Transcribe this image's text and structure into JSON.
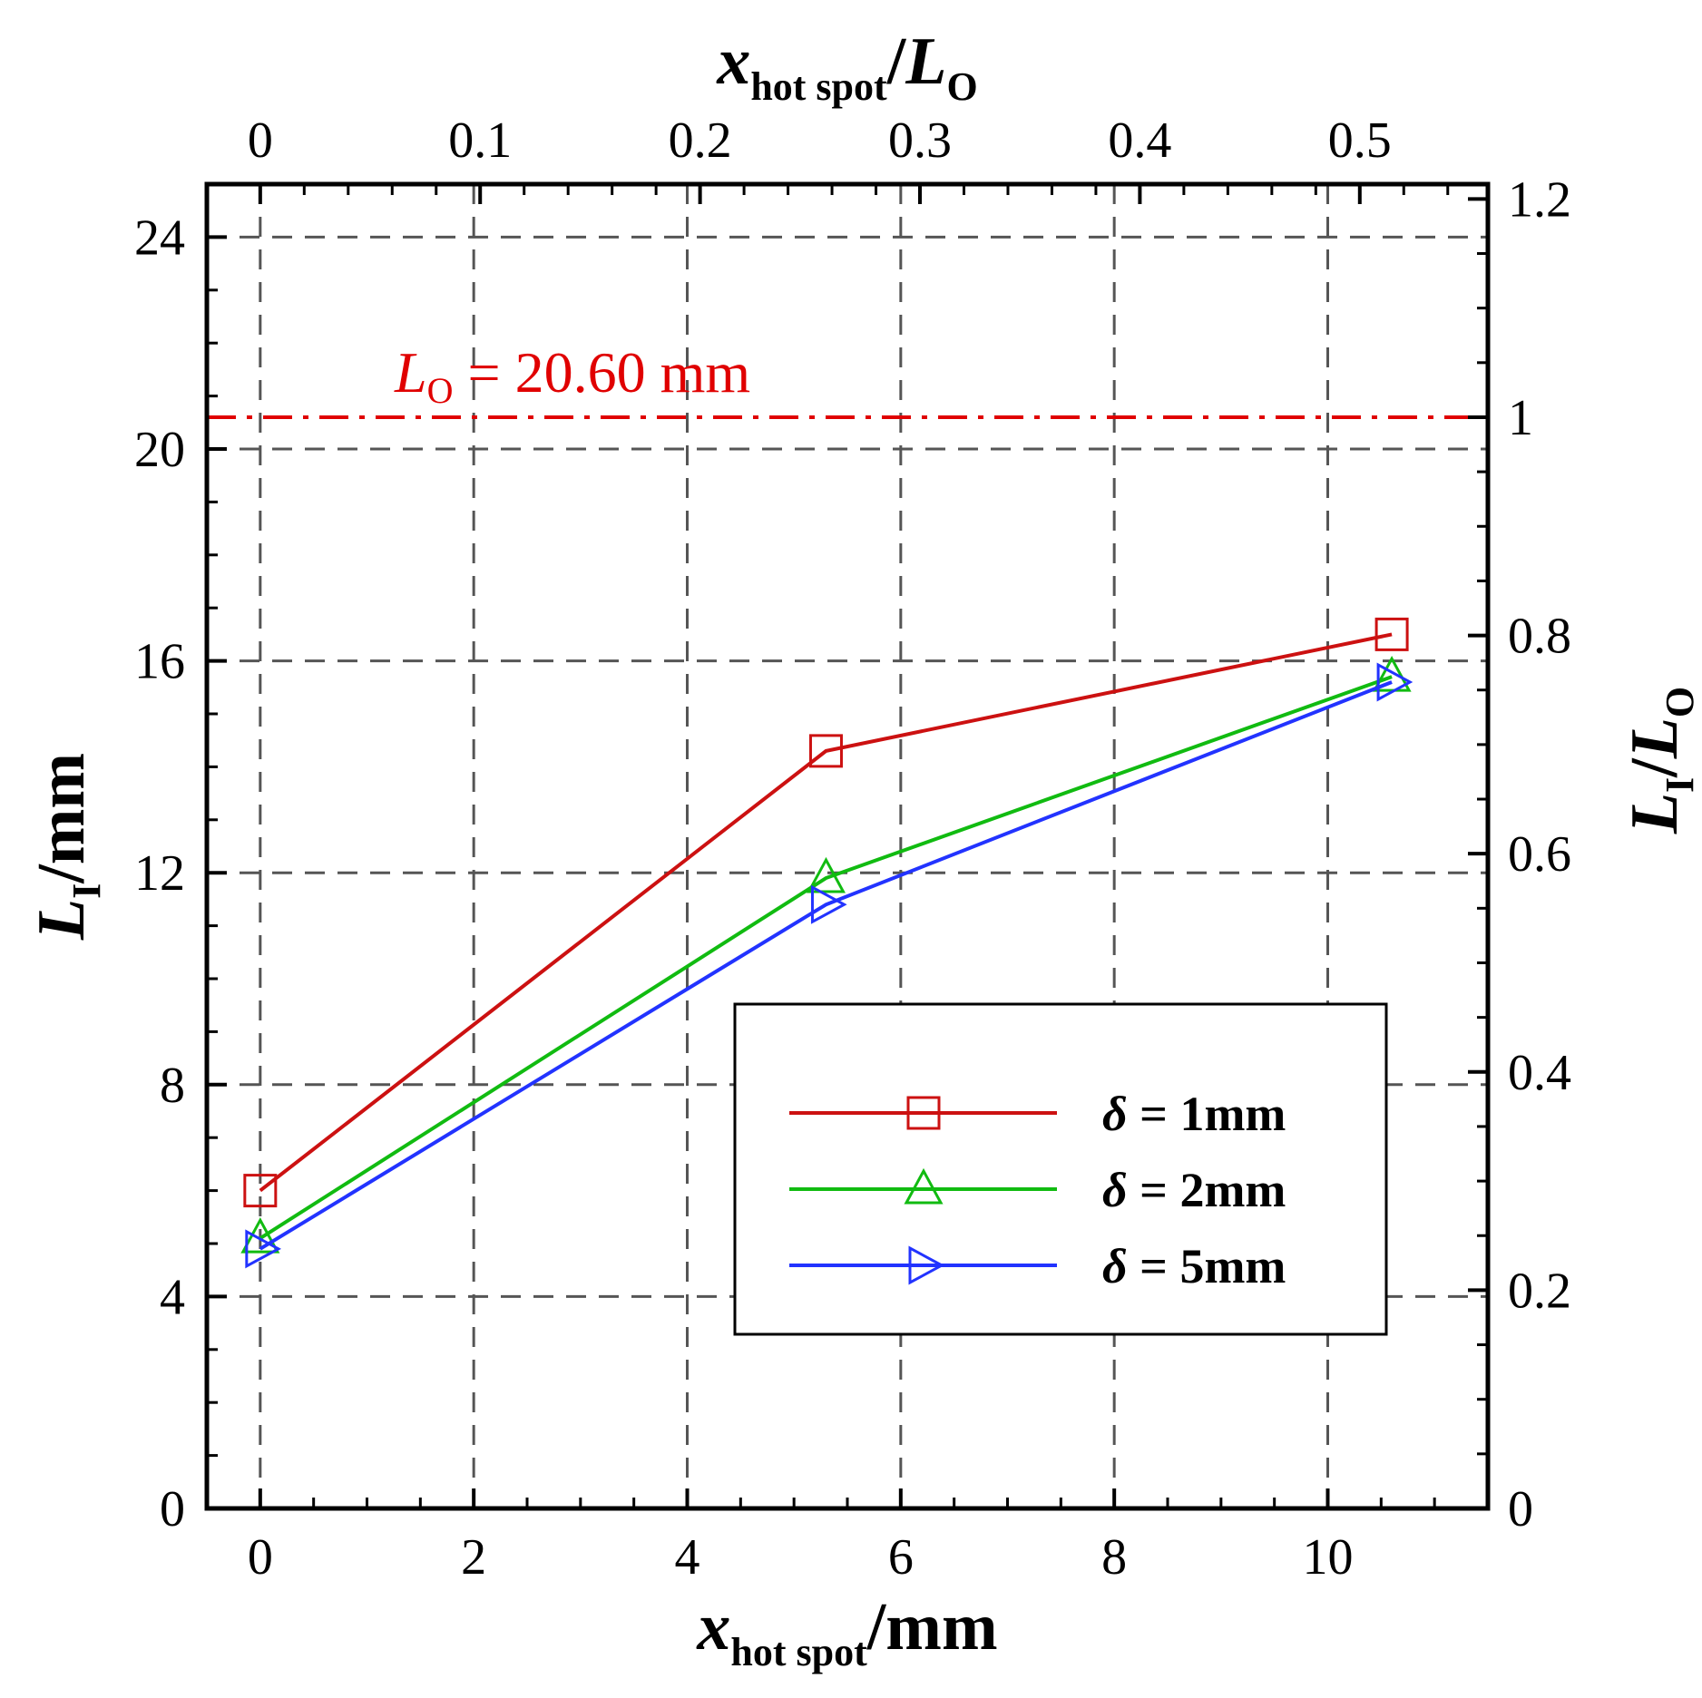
{
  "chart_data": {
    "type": "line",
    "x_axis": {
      "label_var": "x",
      "label_sub": "hot spot",
      "label_unit": "/mm",
      "range": [
        -0.5,
        11.5
      ],
      "ticks": [
        0,
        2,
        4,
        6,
        8,
        10
      ],
      "tick_labels": [
        "0",
        "2",
        "4",
        "6",
        "8",
        "10"
      ]
    },
    "x2_axis": {
      "label_var": "x",
      "label_sub": "hot spot",
      "label_sep": "/",
      "label_var2": "L",
      "label_sub2": "O",
      "ticks": [
        0,
        0.1,
        0.2,
        0.3,
        0.4,
        0.5
      ],
      "tick_labels": [
        "0",
        "0.1",
        "0.2",
        "0.3",
        "0.4",
        "0.5"
      ]
    },
    "y_axis": {
      "label_var": "L",
      "label_sub": "I",
      "label_unit": "/mm",
      "range": [
        0,
        25
      ],
      "ticks": [
        0,
        4,
        8,
        12,
        16,
        20,
        24
      ],
      "tick_labels": [
        "0",
        "4",
        "8",
        "12",
        "16",
        "20",
        "24"
      ]
    },
    "y2_axis": {
      "label_var": "L",
      "label_sub": "I",
      "label_sep": "/",
      "label_var2": "L",
      "label_sub2": "O",
      "ticks": [
        0,
        0.2,
        0.4,
        0.6,
        0.8,
        1,
        1.2
      ],
      "tick_labels": [
        "0",
        "0.2",
        "0.4",
        "0.6",
        "0.8",
        "1",
        "1.2"
      ]
    },
    "grid": true,
    "reference_line": {
      "y": 20.6,
      "label_var": "L",
      "label_sub": "O",
      "label_text": " = 20.60 mm",
      "color": "#e00000"
    },
    "series": [
      {
        "name": "δ = 1mm",
        "color": "#cc1111",
        "marker": "square",
        "x": [
          0,
          5.3,
          10.6
        ],
        "y": [
          6.0,
          14.3,
          16.5
        ]
      },
      {
        "name": "δ = 2mm",
        "color": "#11bb11",
        "marker": "triangle-up",
        "x": [
          0,
          5.3,
          10.6
        ],
        "y": [
          5.1,
          11.9,
          15.7
        ]
      },
      {
        "name": "δ = 5mm",
        "color": "#2233ff",
        "marker": "triangle-right",
        "x": [
          0,
          5.3,
          10.6
        ],
        "y": [
          4.9,
          11.4,
          15.6
        ]
      }
    ],
    "legend_position": "lower-right"
  }
}
